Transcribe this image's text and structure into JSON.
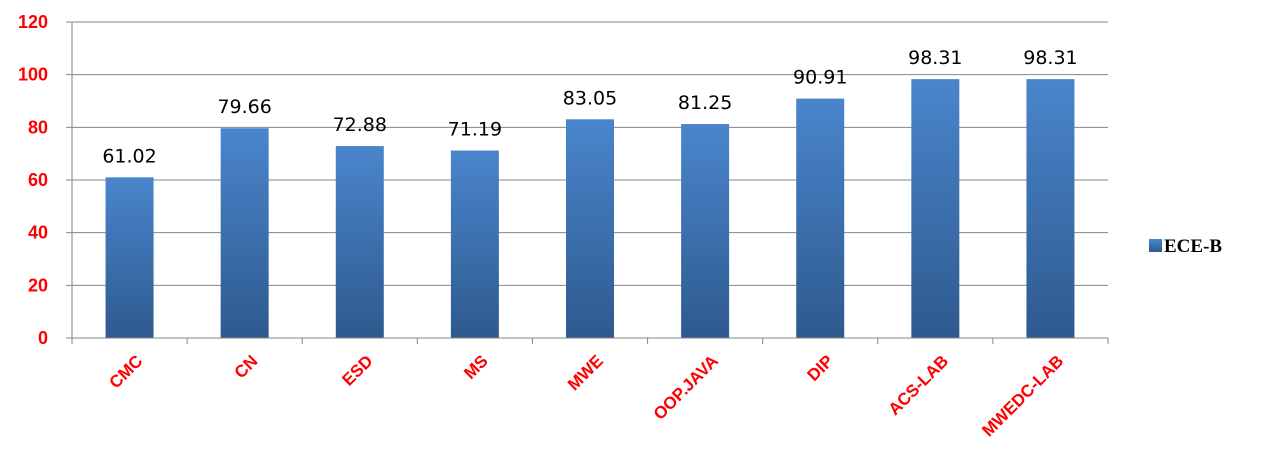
{
  "chart_data": {
    "type": "bar",
    "categories": [
      "CMC",
      "CN",
      "ESD",
      "MS",
      "MWE",
      "OOP.JAVA",
      "DIP",
      "ACS-LAB",
      "MWEDC-LAB"
    ],
    "series": [
      {
        "name": "ECE-B",
        "values": [
          61.02,
          79.66,
          72.88,
          71.19,
          83.05,
          81.25,
          90.91,
          98.31,
          98.31
        ]
      }
    ],
    "data_labels": [
      "61.02",
      "79.66",
      "72.88",
      "71.19",
      "83.05",
      "81.25",
      "90.91",
      "98.31",
      "98.31"
    ],
    "yticks": [
      0,
      20,
      40,
      60,
      80,
      100,
      120
    ],
    "ylim": [
      0,
      120
    ],
    "grid": true,
    "legend_position": "right",
    "colors": {
      "bar_top": "#4a85cc",
      "bar_bottom": "#2e5a8e",
      "tick_label_color": "#ff0000",
      "grid_color": "#868686",
      "text_color": "#000000"
    }
  }
}
